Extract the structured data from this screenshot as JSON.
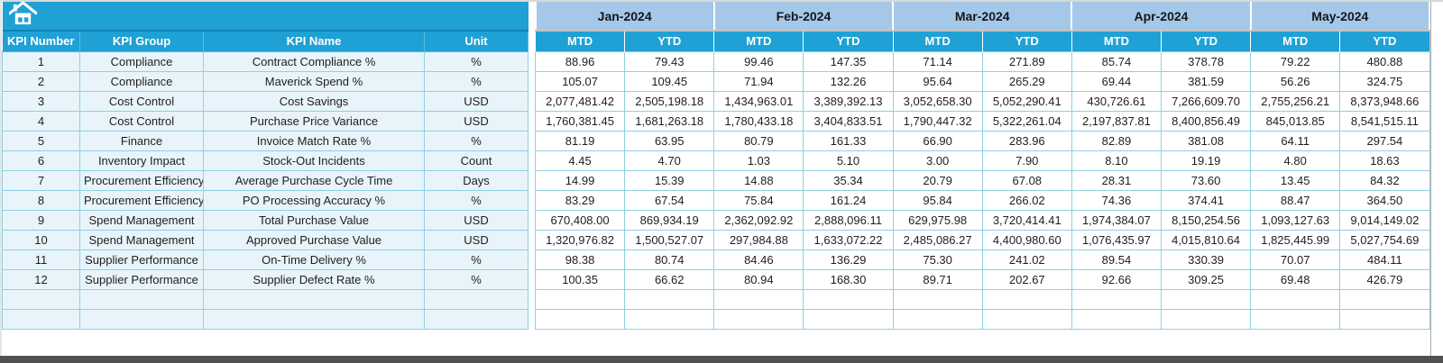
{
  "header": {
    "home_icon": "home-icon",
    "left_columns": [
      "KPI Number",
      "KPI Group",
      "KPI Name",
      "Unit"
    ],
    "months": [
      "Jan-2024",
      "Feb-2024",
      "Mar-2024",
      "Apr-2024",
      "May-2024"
    ],
    "sub_columns": [
      "MTD",
      "YTD"
    ]
  },
  "rows": [
    {
      "kpi_number": "1",
      "kpi_group": "Compliance",
      "kpi_name": "Contract Compliance %",
      "unit": "%",
      "values": [
        "88.96",
        "79.43",
        "99.46",
        "147.35",
        "71.14",
        "271.89",
        "85.74",
        "378.78",
        "79.22",
        "480.88"
      ]
    },
    {
      "kpi_number": "2",
      "kpi_group": "Compliance",
      "kpi_name": "Maverick Spend %",
      "unit": "%",
      "values": [
        "105.07",
        "109.45",
        "71.94",
        "132.26",
        "95.64",
        "265.29",
        "69.44",
        "381.59",
        "56.26",
        "324.75"
      ]
    },
    {
      "kpi_number": "3",
      "kpi_group": "Cost Control",
      "kpi_name": "Cost Savings",
      "unit": "USD",
      "values": [
        "2,077,481.42",
        "2,505,198.18",
        "1,434,963.01",
        "3,389,392.13",
        "3,052,658.30",
        "5,052,290.41",
        "430,726.61",
        "7,266,609.70",
        "2,755,256.21",
        "8,373,948.66"
      ]
    },
    {
      "kpi_number": "4",
      "kpi_group": "Cost Control",
      "kpi_name": "Purchase Price Variance",
      "unit": "USD",
      "values": [
        "1,760,381.45",
        "1,681,263.18",
        "1,780,433.18",
        "3,404,833.51",
        "1,790,447.32",
        "5,322,261.04",
        "2,197,837.81",
        "8,400,856.49",
        "845,013.85",
        "8,541,515.11"
      ]
    },
    {
      "kpi_number": "5",
      "kpi_group": "Finance",
      "kpi_name": "Invoice Match Rate %",
      "unit": "%",
      "values": [
        "81.19",
        "63.95",
        "80.79",
        "161.33",
        "66.90",
        "283.96",
        "82.89",
        "381.08",
        "64.11",
        "297.54"
      ]
    },
    {
      "kpi_number": "6",
      "kpi_group": "Inventory Impact",
      "kpi_name": "Stock-Out Incidents",
      "unit": "Count",
      "values": [
        "4.45",
        "4.70",
        "1.03",
        "5.10",
        "3.00",
        "7.90",
        "8.10",
        "19.19",
        "4.80",
        "18.63"
      ]
    },
    {
      "kpi_number": "7",
      "kpi_group": "Procurement Efficiency",
      "kpi_name": "Average Purchase Cycle Time",
      "unit": "Days",
      "values": [
        "14.99",
        "15.39",
        "14.88",
        "35.34",
        "20.79",
        "67.08",
        "28.31",
        "73.60",
        "13.45",
        "84.32"
      ]
    },
    {
      "kpi_number": "8",
      "kpi_group": "Procurement Efficiency",
      "kpi_name": "PO Processing Accuracy %",
      "unit": "%",
      "values": [
        "83.29",
        "67.54",
        "75.84",
        "161.24",
        "95.84",
        "266.02",
        "74.36",
        "374.41",
        "88.47",
        "364.50"
      ]
    },
    {
      "kpi_number": "9",
      "kpi_group": "Spend Management",
      "kpi_name": "Total Purchase Value",
      "unit": "USD",
      "values": [
        "670,408.00",
        "869,934.19",
        "2,362,092.92",
        "2,888,096.11",
        "629,975.98",
        "3,720,414.41",
        "1,974,384.07",
        "8,150,254.56",
        "1,093,127.63",
        "9,014,149.02"
      ]
    },
    {
      "kpi_number": "10",
      "kpi_group": "Spend Management",
      "kpi_name": "Approved Purchase Value",
      "unit": "USD",
      "values": [
        "1,320,976.82",
        "1,500,527.07",
        "297,984.88",
        "1,633,072.22",
        "2,485,086.27",
        "4,400,980.60",
        "1,076,435.97",
        "4,015,810.64",
        "1,825,445.99",
        "5,027,754.69"
      ]
    },
    {
      "kpi_number": "11",
      "kpi_group": "Supplier Performance",
      "kpi_name": "On-Time Delivery %",
      "unit": "%",
      "values": [
        "98.38",
        "80.74",
        "84.46",
        "136.29",
        "75.30",
        "241.02",
        "89.54",
        "330.39",
        "70.07",
        "484.11"
      ]
    },
    {
      "kpi_number": "12",
      "kpi_group": "Supplier Performance",
      "kpi_name": "Supplier Defect Rate %",
      "unit": "%",
      "values": [
        "100.35",
        "66.62",
        "80.94",
        "168.30",
        "89.71",
        "202.67",
        "92.66",
        "309.25",
        "69.48",
        "426.79"
      ]
    }
  ],
  "empty_rows": 2,
  "colors": {
    "teal": "#1FA1D5",
    "dark_line": "#0D83B5",
    "month_band": "#A5C8E8",
    "label_fill": "#E8F4FA",
    "grid": "#8FD0E4",
    "bottom_bar": "#515151",
    "header_text": "#FFFFFF",
    "month_text": "#15161E"
  }
}
